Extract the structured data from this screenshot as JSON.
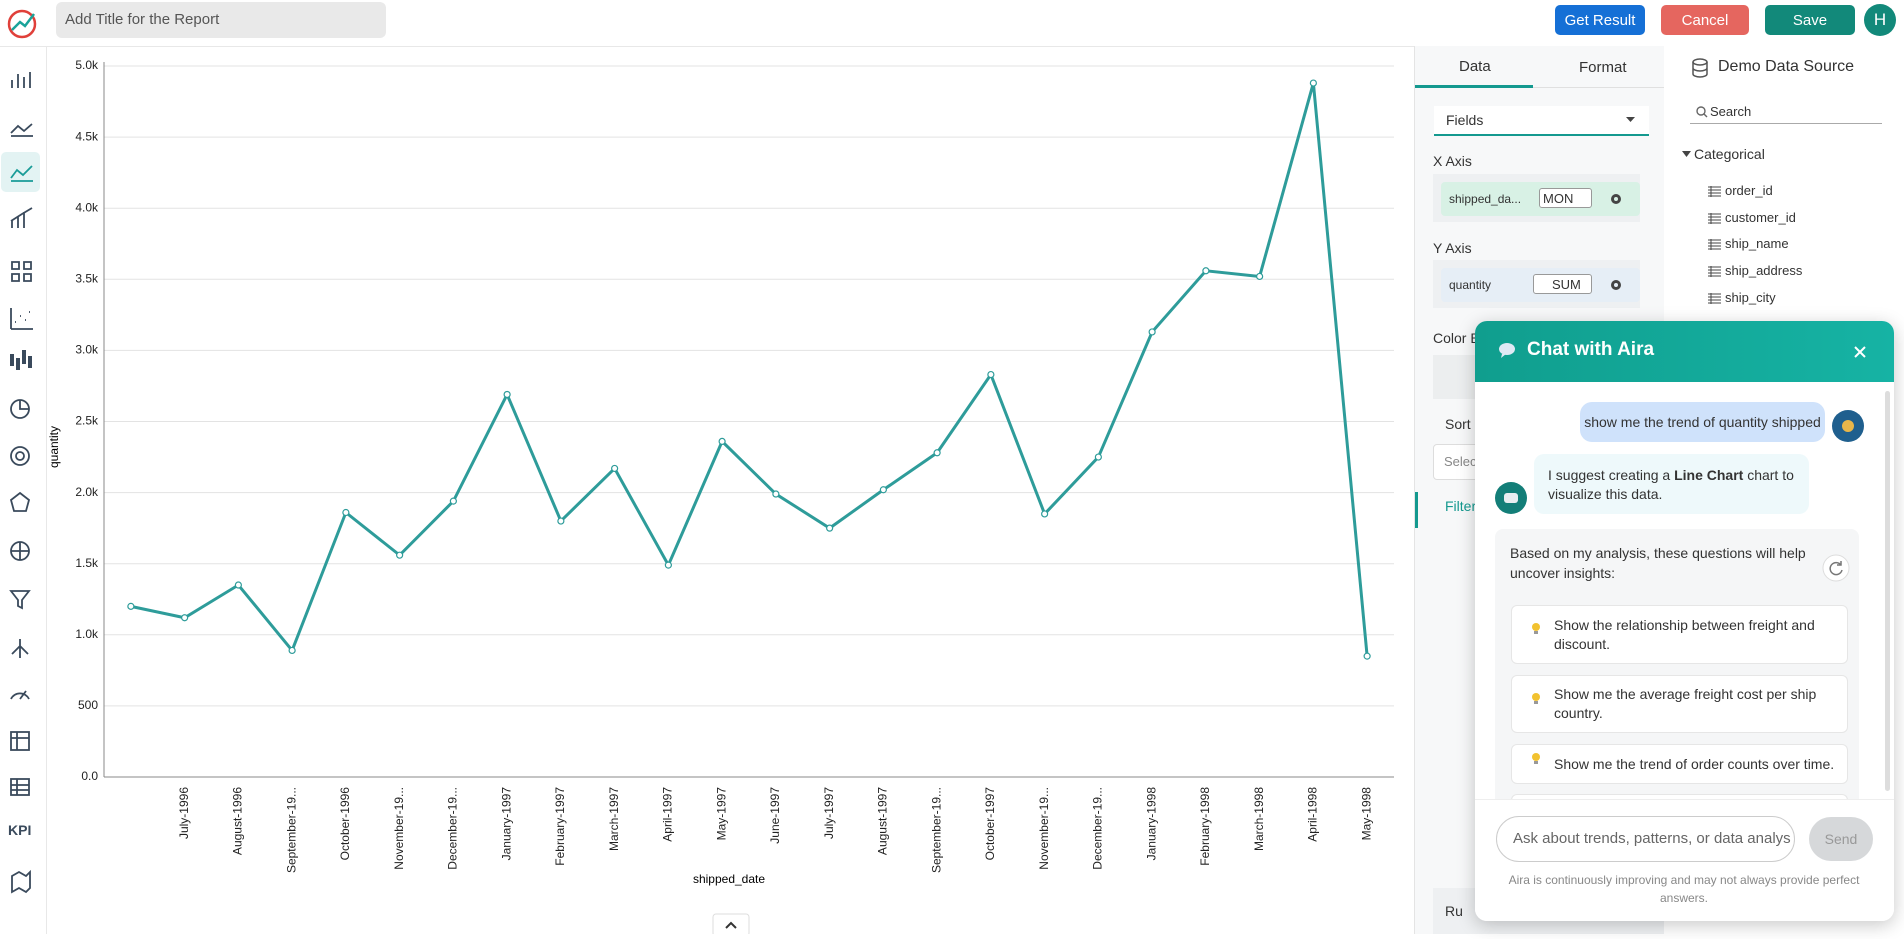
{
  "header": {
    "title_placeholder": "Add Title for the Report",
    "buttons": [
      "Get Result",
      "Cancel",
      "Save"
    ],
    "avatar": "H"
  },
  "sidebar": {
    "kpi": "KPI"
  },
  "chart_data": {
    "type": "line",
    "x_label": "shipped_date",
    "y_label": "quantity",
    "color": "#2e9c9a",
    "grid": true,
    "markers": true,
    "categories": [
      null,
      "July-1996",
      "August-1996",
      "September-19...",
      "October-1996",
      "November-19...",
      "December-19...",
      "January-1997",
      "February-1997",
      "March-1997",
      "April-1997",
      "May-1997",
      "June-1997",
      "July-1997",
      "August-1997",
      "September-19...",
      "October-1997",
      "November-19...",
      "December-19...",
      "January-1998",
      "February-1998",
      "March-1998",
      "April-1998",
      "May-1998"
    ],
    "values": [
      1200,
      1120,
      1350,
      890,
      1860,
      1560,
      1940,
      2690,
      1800,
      2170,
      1490,
      2360,
      1990,
      1750,
      2020,
      2280,
      2830,
      1850,
      2250,
      3130,
      3560,
      3520,
      4880,
      850
    ],
    "ylim": [
      0,
      5000
    ],
    "yticks": [
      {
        "value": 0,
        "label": "0.0"
      },
      500,
      {
        "value": 1000,
        "label": "1.0k"
      },
      {
        "value": 1500,
        "label": "1.5k"
      },
      {
        "value": 2000,
        "label": "2.0k"
      },
      {
        "value": 2500,
        "label": "2.5k"
      },
      {
        "value": 3000,
        "label": "3.0k"
      },
      {
        "value": 3500,
        "label": "3.5k"
      },
      {
        "value": 4000,
        "label": "4.0k"
      },
      {
        "value": 4500,
        "label": "4.5k"
      },
      {
        "value": 5000,
        "label": "5.0k"
      }
    ]
  },
  "panel": {
    "tabs": [
      "Data",
      "Format"
    ],
    "fields": "Fields",
    "x_axis": "X Axis",
    "x_field": "shipped_da...",
    "x_agg": "MON",
    "y_axis": "Y Axis",
    "y_field": "quantity",
    "y_agg": "SUM",
    "color": "Color B",
    "sort": "Sort",
    "select": "Selec",
    "filter": "Filter",
    "run": "Ru"
  },
  "data_source": {
    "title": "Demo Data Source",
    "search": "Search",
    "group": "Categorical",
    "fields": [
      "order_id",
      "customer_id",
      "ship_name",
      "ship_address",
      "ship_city"
    ]
  },
  "chat": {
    "title": "Chat with Aira",
    "user_message": "show me the trend of quantity shipped",
    "bot_before": "I suggest creating a ",
    "bot_bold": "Line Chart",
    "bot_after": " chart to visualize this data.",
    "intro": "Based on my analysis, these questions will help uncover insights:",
    "suggestions": [
      "Show the relationship between freight and discount.",
      "Show me the average freight cost per ship country.",
      "Show me the trend of order counts over time."
    ],
    "input": "Ask about trends, patterns, or data analys",
    "send": "Send",
    "footer": "Aira is continuously improving and may not always provide perfect answers."
  }
}
